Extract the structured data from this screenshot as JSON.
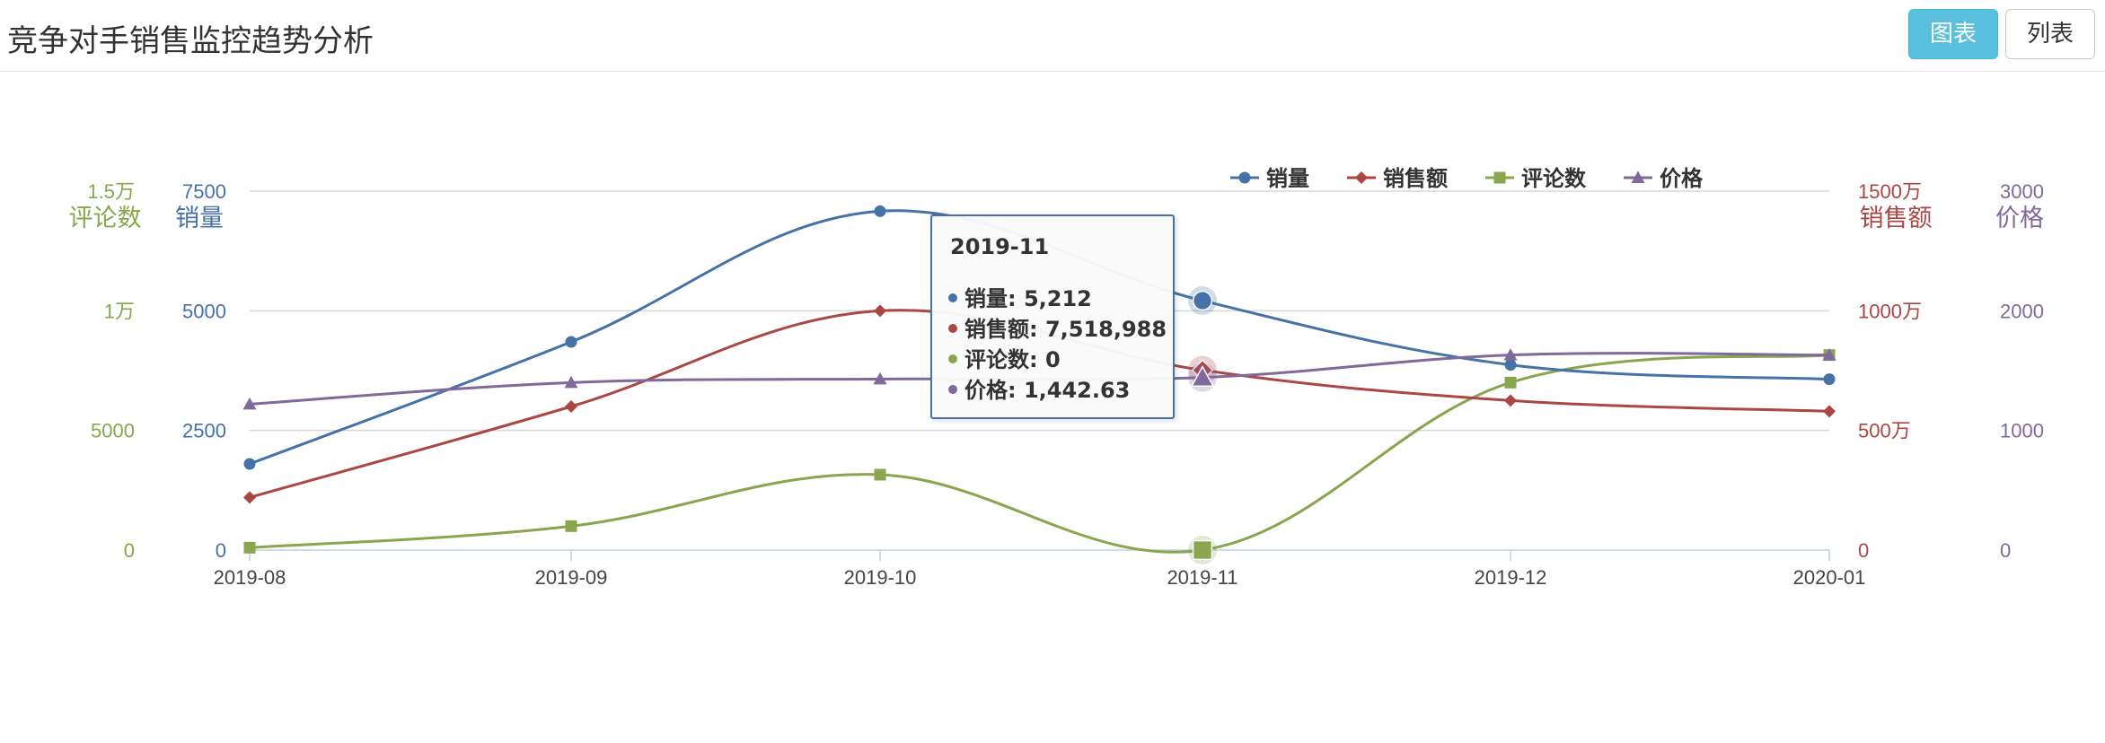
{
  "header": {
    "title": "竞争对手销售监控趋势分析",
    "chart_button": "图表",
    "list_button": "列表"
  },
  "colors": {
    "sales_volume": "#4572a7",
    "sales_amount": "#aa4643",
    "reviews": "#89a54e",
    "price": "#80699b",
    "chart_button_bg": "#5bc0de"
  },
  "tooltip": {
    "title": "2019-11",
    "rows": [
      {
        "label": "销量: 5,212"
      },
      {
        "label": "销售额: 7,518,988"
      },
      {
        "label": "评论数: 0"
      },
      {
        "label": "价格: 1,442.63"
      }
    ]
  },
  "chart_data": {
    "type": "line",
    "categories": [
      "2019-08",
      "2019-09",
      "2019-10",
      "2019-11",
      "2019-12",
      "2020-01"
    ],
    "series": [
      {
        "name": "销量",
        "axis": "sales_volume",
        "marker": "circle",
        "values": [
          1800,
          4350,
          7080,
          5212,
          3870,
          3570
        ]
      },
      {
        "name": "销售额",
        "axis": "sales_amount",
        "marker": "diamond",
        "values": [
          2200000,
          6000000,
          10000000,
          7518988,
          6250000,
          5800000
        ]
      },
      {
        "name": "评论数",
        "axis": "reviews",
        "marker": "square",
        "values": [
          100,
          1000,
          3150,
          0,
          7000,
          8150
        ]
      },
      {
        "name": "价格",
        "axis": "price",
        "marker": "triangle",
        "values": [
          1220,
          1400,
          1430,
          1442.63,
          1630,
          1630
        ]
      }
    ],
    "axes": {
      "reviews": {
        "title": "评论数",
        "side": "left",
        "ticks": [
          "0",
          "5000",
          "1万",
          "1.5万"
        ],
        "range": [
          0,
          15000
        ]
      },
      "sales_volume": {
        "title": "销量",
        "side": "left",
        "ticks": [
          "0",
          "2500",
          "5000",
          "7500"
        ],
        "range": [
          0,
          7500
        ]
      },
      "sales_amount": {
        "title": "销售额",
        "side": "right",
        "ticks": [
          "0",
          "500万",
          "1000万",
          "1500万"
        ],
        "range": [
          0,
          15000000
        ]
      },
      "price": {
        "title": "价格",
        "side": "right",
        "ticks": [
          "0",
          "1000",
          "2000",
          "3000"
        ],
        "range": [
          0,
          3000
        ]
      }
    },
    "grid": true,
    "legend": "top-right",
    "highlighted_category": "2019-11"
  }
}
